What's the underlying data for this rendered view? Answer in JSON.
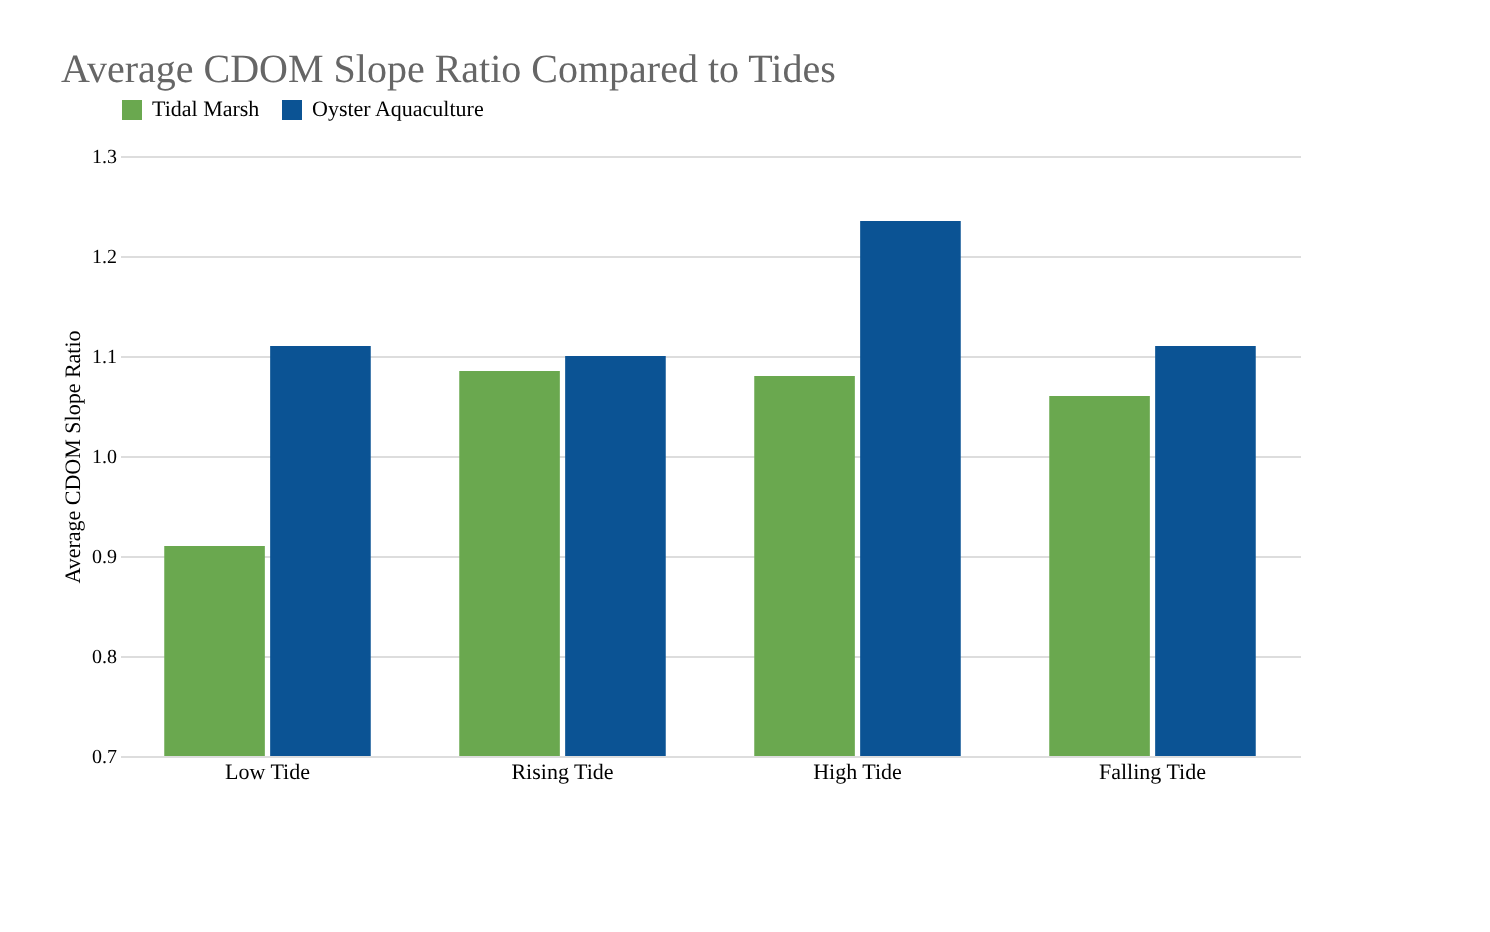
{
  "chart_data": {
    "type": "bar",
    "title": "Average CDOM Slope Ratio Compared to Tides",
    "ylabel": "Average CDOM Slope Ratio",
    "categories": [
      "Low Tide",
      "Rising Tide",
      "High Tide",
      "Falling Tide"
    ],
    "series": [
      {
        "name": "Tidal Marsh",
        "color": "#6aa84f",
        "values": [
          0.91,
          1.085,
          1.08,
          1.06
        ]
      },
      {
        "name": "Oyster Aquaculture",
        "color": "#0b5394",
        "values": [
          1.11,
          1.1,
          1.235,
          1.11
        ]
      }
    ],
    "ylim": [
      0.7,
      1.3
    ],
    "yticks": [
      0.7,
      0.8,
      0.9,
      {
        "value": 1.0,
        "label": "1.0"
      },
      1.1,
      1.2,
      1.3
    ],
    "grid": "y",
    "legend": "top"
  }
}
